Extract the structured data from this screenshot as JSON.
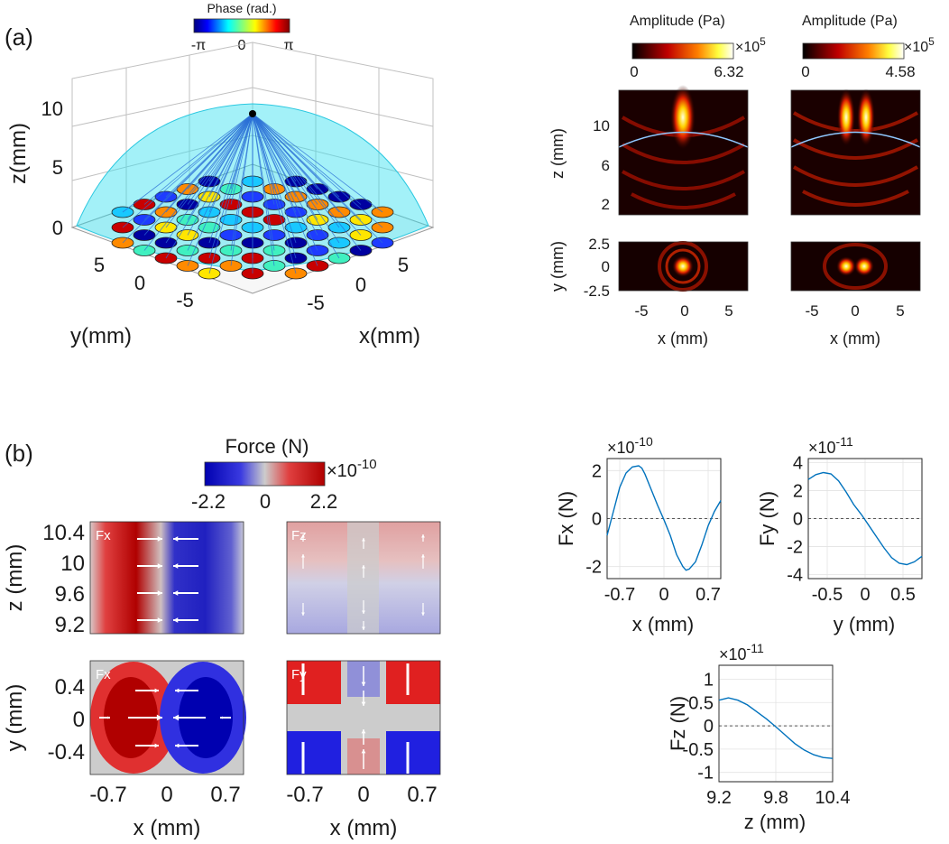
{
  "figure": {
    "panel_a_label": "(a)",
    "panel_b_label": "(b)"
  },
  "panel_a": {
    "phase_colorbar": {
      "title": "Phase (rad.)",
      "ticks": [
        "-π",
        "0",
        "π"
      ]
    },
    "surface_3d": {
      "type": "3d-scatter",
      "zlabel": "z(mm)",
      "ylabel": "y(mm)",
      "xlabel": "x(mm)",
      "zticks": [
        "10",
        "5",
        "0"
      ],
      "yticks": [
        "5",
        "0",
        "-5"
      ],
      "xticks": [
        "-5",
        "0",
        "5"
      ],
      "focal_point_mm": [
        0,
        0,
        10
      ],
      "transducer_grid": "annular array on z=0 plane",
      "colors": {
        "surface": "#33e0f0",
        "rays": "#2a6fd6"
      }
    },
    "amp_left": {
      "colorbar": {
        "title": "Amplitude (Pa)",
        "min": "0",
        "max": "6.32",
        "exponent_base": "×10",
        "exponent": "5"
      },
      "xz": {
        "ylabel": "z (mm)",
        "yticks": [
          "10",
          "6",
          "2"
        ]
      },
      "xy": {
        "ylabel": "y (mm)",
        "yticks": [
          "2.5",
          "0",
          "-2.5"
        ],
        "xlabel": "x (mm)",
        "xticks": [
          "-5",
          "0",
          "5"
        ]
      }
    },
    "amp_right": {
      "colorbar": {
        "title": "Amplitude (Pa)",
        "min": "0",
        "max": "4.58",
        "exponent_base": "×10",
        "exponent": "5"
      },
      "xy": {
        "xlabel": "x (mm)",
        "xticks": [
          "-5",
          "0",
          "5"
        ]
      }
    }
  },
  "panel_b": {
    "force_colorbar": {
      "title": "Force (N)",
      "min": "-2.2",
      "mid": "0",
      "max": "2.2",
      "exponent_base": "×10",
      "exponent": "-10"
    },
    "maps": {
      "fx_xz": {
        "tag": "Fx",
        "ylabel": "z (mm)",
        "yticks": [
          "10.4",
          "10",
          "9.6",
          "9.2"
        ]
      },
      "fz_xz": {
        "tag": "Fz"
      },
      "fx_xy": {
        "tag": "Fx",
        "ylabel": "y (mm)",
        "yticks": [
          "0.4",
          "0",
          "-0.4"
        ],
        "xlabel": "x (mm)",
        "xticks": [
          "-0.7",
          "0",
          "0.7"
        ]
      },
      "fy_xy": {
        "tag": "Fy",
        "xlabel": "x (mm)",
        "xticks": [
          "-0.7",
          "0",
          "0.7"
        ]
      }
    }
  },
  "chart_data": [
    {
      "type": "line",
      "id": "fx_vs_x",
      "xlabel": "x (mm)",
      "ylabel": "Fx (N)",
      "exponent_base": "×10",
      "exponent": "-10",
      "xlim": [
        -0.9,
        0.9
      ],
      "ylim": [
        -2.5,
        2.5
      ],
      "xticks": [
        -0.7,
        0,
        0.7
      ],
      "yticks": [
        2,
        0,
        -2
      ],
      "xtick_labels": [
        "-0.7",
        "0",
        "0.7"
      ],
      "ytick_labels": [
        "2",
        "0",
        "-2"
      ],
      "series": [
        {
          "name": "Fx",
          "x": [
            -0.9,
            -0.8,
            -0.7,
            -0.6,
            -0.5,
            -0.4,
            -0.35,
            -0.3,
            -0.2,
            -0.1,
            0,
            0.1,
            0.2,
            0.3,
            0.35,
            0.4,
            0.5,
            0.6,
            0.7,
            0.8,
            0.9
          ],
          "y": [
            -0.7,
            0.3,
            1.3,
            1.9,
            2.15,
            2.2,
            2.1,
            1.85,
            1.2,
            0.55,
            -0.05,
            -0.7,
            -1.5,
            -2.0,
            -2.15,
            -2.1,
            -1.8,
            -1.1,
            -0.3,
            0.3,
            0.75
          ]
        }
      ],
      "guide_line_y": 0
    },
    {
      "type": "line",
      "id": "fy_vs_y",
      "xlabel": "y (mm)",
      "ylabel": "Fy (N)",
      "exponent_base": "×10",
      "exponent": "-11",
      "xlim": [
        -0.75,
        0.75
      ],
      "ylim": [
        -4.3,
        4.3
      ],
      "xticks": [
        -0.5,
        0,
        0.5
      ],
      "yticks": [
        4,
        2,
        0,
        -2,
        -4
      ],
      "xtick_labels": [
        "-0.5",
        "0",
        "0.5"
      ],
      "ytick_labels": [
        "4",
        "2",
        "0",
        "-2",
        "-4"
      ],
      "series": [
        {
          "name": "Fy",
          "x": [
            -0.75,
            -0.65,
            -0.55,
            -0.45,
            -0.35,
            -0.25,
            -0.15,
            -0.05,
            0,
            0.05,
            0.15,
            0.25,
            0.35,
            0.45,
            0.55,
            0.65,
            0.75
          ],
          "y": [
            2.8,
            3.15,
            3.3,
            3.2,
            2.7,
            1.9,
            1.0,
            0.3,
            -0.1,
            -0.5,
            -1.3,
            -2.1,
            -2.8,
            -3.2,
            -3.3,
            -3.1,
            -2.7
          ]
        }
      ],
      "guide_line_y": 0
    },
    {
      "type": "line",
      "id": "fz_vs_z",
      "xlabel": "z (mm)",
      "ylabel": "Fz (N)",
      "exponent_base": "×10",
      "exponent": "-11",
      "xlim": [
        9.2,
        10.4
      ],
      "ylim": [
        -1.2,
        1.3
      ],
      "xticks": [
        9.2,
        9.8,
        10.4
      ],
      "yticks": [
        1,
        0.5,
        0,
        -0.5,
        -1
      ],
      "xtick_labels": [
        "9.2",
        "9.8",
        "10.4"
      ],
      "ytick_labels": [
        "1",
        "0.5",
        "0",
        "-0.5",
        "-1"
      ],
      "series": [
        {
          "name": "Fz",
          "x": [
            9.2,
            9.3,
            9.4,
            9.5,
            9.6,
            9.7,
            9.8,
            9.9,
            10.0,
            10.1,
            10.2,
            10.3,
            10.4
          ],
          "y": [
            0.55,
            0.6,
            0.55,
            0.45,
            0.3,
            0.15,
            -0.02,
            -0.2,
            -0.38,
            -0.52,
            -0.62,
            -0.68,
            -0.7
          ]
        }
      ],
      "guide_line_y": 0
    }
  ]
}
